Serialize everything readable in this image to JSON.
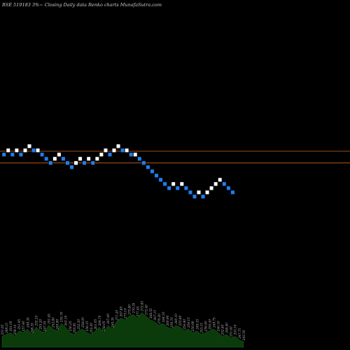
{
  "chart_data": {
    "type": "renko",
    "title": "BSE 519183 3%~  Closing Daily data  Renko  charts MunafaSutra.com",
    "x": [
      1,
      2,
      3,
      4,
      5,
      6,
      7,
      8,
      9,
      10,
      11,
      12,
      13,
      14,
      15,
      16,
      17,
      18,
      19,
      20,
      21,
      22,
      23,
      24,
      25,
      26,
      27,
      28,
      29,
      30,
      31,
      32,
      33,
      34,
      35,
      36,
      37,
      38,
      39,
      40,
      41,
      42,
      43,
      44,
      45,
      46,
      47,
      48,
      49,
      50,
      51,
      52,
      53,
      54,
      55,
      56,
      57,
      58
    ],
    "bricks": [
      {
        "level": 0,
        "dir": "down"
      },
      {
        "level": 1,
        "dir": "up"
      },
      {
        "level": 0,
        "dir": "down"
      },
      {
        "level": 1,
        "dir": "up"
      },
      {
        "level": 0,
        "dir": "down"
      },
      {
        "level": 1,
        "dir": "up"
      },
      {
        "level": 2,
        "dir": "up"
      },
      {
        "level": 1,
        "dir": "down"
      },
      {
        "level": 1,
        "dir": "up"
      },
      {
        "level": 0,
        "dir": "down"
      },
      {
        "level": -1,
        "dir": "down"
      },
      {
        "level": -2,
        "dir": "down"
      },
      {
        "level": -1,
        "dir": "up"
      },
      {
        "level": 0,
        "dir": "up"
      },
      {
        "level": -1,
        "dir": "down"
      },
      {
        "level": -2,
        "dir": "down"
      },
      {
        "level": -3,
        "dir": "down"
      },
      {
        "level": -2,
        "dir": "up"
      },
      {
        "level": -1,
        "dir": "up"
      },
      {
        "level": -2,
        "dir": "down"
      },
      {
        "level": -1,
        "dir": "up"
      },
      {
        "level": -2,
        "dir": "down"
      },
      {
        "level": -1,
        "dir": "up"
      },
      {
        "level": 0,
        "dir": "up"
      },
      {
        "level": 1,
        "dir": "up"
      },
      {
        "level": 0,
        "dir": "down"
      },
      {
        "level": 1,
        "dir": "up"
      },
      {
        "level": 2,
        "dir": "up"
      },
      {
        "level": 1,
        "dir": "down"
      },
      {
        "level": 1,
        "dir": "up"
      },
      {
        "level": 0,
        "dir": "down"
      },
      {
        "level": 0,
        "dir": "up"
      },
      {
        "level": -1,
        "dir": "down"
      },
      {
        "level": -2,
        "dir": "down"
      },
      {
        "level": -3,
        "dir": "down"
      },
      {
        "level": -4,
        "dir": "down"
      },
      {
        "level": -5,
        "dir": "down"
      },
      {
        "level": -6,
        "dir": "down"
      },
      {
        "level": -7,
        "dir": "down"
      },
      {
        "level": -8,
        "dir": "down"
      },
      {
        "level": -7,
        "dir": "up"
      },
      {
        "level": -8,
        "dir": "down"
      },
      {
        "level": -7,
        "dir": "up"
      },
      {
        "level": -8,
        "dir": "down"
      },
      {
        "level": -9,
        "dir": "down"
      },
      {
        "level": -10,
        "dir": "down"
      },
      {
        "level": -9,
        "dir": "up"
      },
      {
        "level": -10,
        "dir": "down"
      },
      {
        "level": -9,
        "dir": "up"
      },
      {
        "level": -8,
        "dir": "up"
      },
      {
        "level": -7,
        "dir": "up"
      },
      {
        "level": -6,
        "dir": "up"
      },
      {
        "level": -7,
        "dir": "down"
      },
      {
        "level": -8,
        "dir": "down"
      },
      {
        "level": -9,
        "dir": "down"
      }
    ],
    "reference_lines": [
      0.8,
      -2.0
    ],
    "volume_values": [
      6,
      7,
      8,
      6,
      9,
      8,
      10,
      7,
      11,
      9,
      8,
      12,
      10,
      9,
      13,
      11,
      8,
      7,
      9,
      10,
      8,
      7,
      9,
      11,
      8,
      12,
      10,
      14,
      16,
      15,
      17,
      18,
      16,
      19,
      17,
      15,
      14,
      12,
      13,
      11,
      10,
      12,
      11,
      9,
      10,
      8,
      9,
      7,
      8,
      9,
      10,
      8,
      6,
      7,
      5,
      6,
      4,
      3
    ],
    "volume_labels": [
      "251.05",
      "249.15",
      "261.05",
      "259.10",
      "251.95",
      "257.40",
      "249.35",
      "248.35",
      "252.25",
      "255.20",
      "247.55",
      "251.45",
      "252.80",
      "249.90",
      "255.70",
      "263.10",
      "256.25",
      "250.95",
      "252.50",
      "258.00",
      "256.15",
      "252.20",
      "261.05",
      "264.70",
      "258.05",
      "267.40",
      "269.35",
      "271.20",
      "267.85",
      "275.10",
      "275.80",
      "270.35",
      "277.45",
      "272.85",
      "272.40",
      "268.55",
      "267.15",
      "270.20",
      "264.10",
      "260.90",
      "259.70",
      "260.10",
      "255.80",
      "256.40",
      "254.15",
      "250.90",
      "249.35",
      "253.15",
      "256.40",
      "250.20",
      "249.75",
      "246.10",
      "252.80",
      "248.40",
      "251.60",
      "253.10",
      "247.75",
      "243.50"
    ],
    "colors": {
      "up": "#ffffff",
      "down": "#1e7ff0",
      "reference": "#d2691e",
      "volume": "#0b3a0b"
    }
  }
}
